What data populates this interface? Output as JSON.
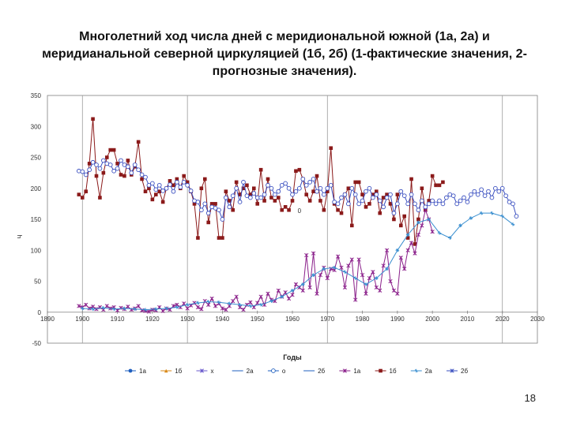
{
  "slide": {
    "title": "Многолетний ход числа дней с меридиональной южной (1а, 2а) и меридианальной северной циркуляцией (1б, 2б) (1-фактические значения, 2-прогнозные значения).",
    "page_number": "18"
  },
  "chart_data": {
    "type": "line",
    "title": "",
    "xlabel": "Годы",
    "ylabel": "Ч",
    "xlim": [
      1890,
      2030
    ],
    "ylim": [
      -50,
      350
    ],
    "x_ticks": [
      "1890",
      "1900",
      "1910",
      "1920",
      "1930",
      "1940",
      "1950",
      "1960",
      "1970",
      "1980",
      "1990",
      "2000",
      "2010",
      "2020",
      "2030"
    ],
    "y_ticks": [
      "350",
      "300",
      "250",
      "200",
      "150",
      "100",
      "50",
      "0",
      "-50"
    ],
    "vertical_grid_years": [
      1900,
      1930,
      1970,
      2020
    ],
    "grid": false,
    "legend_position": "bottom",
    "annotations": [
      {
        "text": "0",
        "x": 1962,
        "y": 160
      }
    ],
    "legend": [
      {
        "label": "1a",
        "color": "#1f5fbf",
        "marker": "circle"
      },
      {
        "label": "1б",
        "color": "#d98a1a",
        "marker": "triangle"
      },
      {
        "label": "x",
        "color": "#6a5acd",
        "marker": "x"
      },
      {
        "label": "2a",
        "color": "#1f5fbf",
        "marker": "none"
      },
      {
        "label": "o",
        "color": "#1f5fbf",
        "marker": "open-circle"
      },
      {
        "label": "2б",
        "color": "#1f5fbf",
        "marker": "none"
      },
      {
        "label": "1a",
        "color": "#8a1f8a",
        "marker": "star"
      },
      {
        "label": "1б",
        "color": "#8b1a1a",
        "marker": "square"
      },
      {
        "label": "2a",
        "color": "#3a8fd0",
        "marker": "plus"
      },
      {
        "label": "2б",
        "color": "#3a4fc0",
        "marker": "x"
      }
    ],
    "series": [
      {
        "name": "1б",
        "color": "#8b1a1a",
        "marker": "square",
        "x": [
          1899,
          1900,
          1901,
          1902,
          1903,
          1904,
          1905,
          1906,
          1907,
          1908,
          1909,
          1910,
          1911,
          1912,
          1913,
          1914,
          1915,
          1916,
          1917,
          1918,
          1919,
          1920,
          1921,
          1922,
          1923,
          1924,
          1925,
          1926,
          1927,
          1928,
          1929,
          1930,
          1931,
          1932,
          1933,
          1934,
          1935,
          1936,
          1937,
          1938,
          1939,
          1940,
          1941,
          1942,
          1943,
          1944,
          1945,
          1946,
          1947,
          1948,
          1949,
          1950,
          1951,
          1952,
          1953,
          1954,
          1955,
          1956,
          1957,
          1958,
          1959,
          1960,
          1961,
          1962,
          1963,
          1964,
          1965,
          1966,
          1967,
          1968,
          1969,
          1970,
          1971,
          1972,
          1973,
          1974,
          1975,
          1976,
          1977,
          1978,
          1979,
          1980,
          1981,
          1982,
          1983,
          1984,
          1985,
          1986,
          1987,
          1988,
          1989,
          1990,
          1991,
          1992,
          1993,
          1994,
          1995,
          1996,
          1997,
          1998,
          1999,
          2000,
          2001,
          2002,
          2003
        ],
        "y": [
          190,
          185,
          195,
          240,
          312,
          220,
          185,
          225,
          250,
          262,
          262,
          240,
          222,
          220,
          245,
          222,
          235,
          275,
          215,
          195,
          200,
          182,
          190,
          195,
          178,
          200,
          212,
          205,
          215,
          200,
          220,
          210,
          195,
          175,
          120,
          200,
          215,
          145,
          175,
          175,
          120,
          120,
          195,
          180,
          165,
          210,
          190,
          200,
          205,
          190,
          200,
          175,
          230,
          180,
          215,
          185,
          180,
          185,
          165,
          170,
          165,
          180,
          228,
          230,
          215,
          190,
          180,
          195,
          220,
          180,
          165,
          195,
          265,
          175,
          165,
          160,
          190,
          200,
          140,
          210,
          210,
          190,
          170,
          175,
          190,
          195,
          160,
          185,
          190,
          175,
          150,
          190,
          140,
          155,
          120,
          215,
          110,
          150,
          200,
          165,
          180,
          220,
          205,
          205,
          210
        ]
      },
      {
        "name": "1a",
        "color": "#8a1f8a",
        "marker": "star",
        "x": [
          1899,
          1900,
          1901,
          1902,
          1903,
          1904,
          1905,
          1906,
          1907,
          1908,
          1909,
          1910,
          1911,
          1912,
          1913,
          1914,
          1915,
          1916,
          1917,
          1918,
          1919,
          1920,
          1921,
          1922,
          1923,
          1924,
          1925,
          1926,
          1927,
          1928,
          1929,
          1930,
          1931,
          1932,
          1933,
          1934,
          1935,
          1936,
          1937,
          1938,
          1939,
          1940,
          1941,
          1942,
          1943,
          1944,
          1945,
          1946,
          1947,
          1948,
          1949,
          1950,
          1951,
          1952,
          1953,
          1954,
          1955,
          1956,
          1957,
          1958,
          1959,
          1960,
          1961,
          1962,
          1963,
          1964,
          1965,
          1966,
          1967,
          1968,
          1969,
          1970,
          1971,
          1972,
          1973,
          1974,
          1975,
          1976,
          1977,
          1978,
          1979,
          1980,
          1981,
          1982,
          1983,
          1984,
          1985,
          1986,
          1987,
          1988,
          1989,
          1990,
          1991,
          1992,
          1993,
          1994,
          1995,
          1996,
          1997,
          1998,
          1999,
          2000
        ],
        "y": [
          10,
          8,
          12,
          6,
          9,
          5,
          8,
          4,
          10,
          6,
          8,
          3,
          7,
          5,
          9,
          4,
          6,
          10,
          3,
          2,
          1,
          4,
          3,
          8,
          2,
          6,
          4,
          10,
          12,
          8,
          14,
          6,
          11,
          15,
          8,
          5,
          18,
          12,
          22,
          10,
          14,
          6,
          4,
          10,
          18,
          25,
          8,
          4,
          12,
          16,
          8,
          15,
          25,
          12,
          30,
          20,
          18,
          35,
          25,
          32,
          22,
          28,
          45,
          40,
          35,
          92,
          40,
          95,
          30,
          60,
          72,
          55,
          70,
          68,
          90,
          72,
          40,
          75,
          85,
          20,
          85,
          60,
          30,
          55,
          65,
          40,
          35,
          75,
          100,
          50,
          35,
          30,
          88,
          70,
          100,
          112,
          95,
          125,
          140,
          165,
          150,
          130
        ]
      },
      {
        "name": "2a",
        "color": "#3a8fd0",
        "marker": "plus",
        "x": [
          1900,
          1903,
          1906,
          1909,
          1912,
          1915,
          1918,
          1921,
          1924,
          1927,
          1930,
          1933,
          1936,
          1939,
          1942,
          1945,
          1948,
          1951,
          1954,
          1957,
          1960,
          1963,
          1966,
          1969,
          1972,
          1975,
          1978,
          1981,
          1984,
          1987,
          1990,
          1993,
          1996,
          1999,
          2002,
          2005,
          2008,
          2011,
          2014,
          2017,
          2020,
          2023
        ],
        "y": [
          6,
          5,
          7,
          5,
          6,
          5,
          4,
          5,
          6,
          8,
          12,
          15,
          17,
          16,
          14,
          12,
          10,
          12,
          18,
          25,
          35,
          45,
          60,
          70,
          72,
          65,
          55,
          45,
          55,
          70,
          100,
          125,
          145,
          150,
          128,
          120,
          140,
          152,
          160,
          160,
          155,
          142
        ]
      },
      {
        "name": "2б",
        "color": "#3a4fc0",
        "marker": "open-circle",
        "x": [
          1899,
          1900,
          1901,
          1902,
          1903,
          1904,
          1905,
          1906,
          1907,
          1908,
          1909,
          1910,
          1911,
          1912,
          1913,
          1914,
          1915,
          1916,
          1917,
          1918,
          1919,
          1920,
          1921,
          1922,
          1923,
          1924,
          1925,
          1926,
          1927,
          1928,
          1929,
          1930,
          1931,
          1932,
          1933,
          1934,
          1935,
          1936,
          1937,
          1938,
          1939,
          1940,
          1941,
          1942,
          1943,
          1944,
          1945,
          1946,
          1947,
          1948,
          1949,
          1950,
          1951,
          1952,
          1953,
          1954,
          1955,
          1956,
          1957,
          1958,
          1959,
          1960,
          1961,
          1962,
          1963,
          1964,
          1965,
          1966,
          1967,
          1968,
          1969,
          1970,
          1971,
          1972,
          1973,
          1974,
          1975,
          1976,
          1977,
          1978,
          1979,
          1980,
          1981,
          1982,
          1983,
          1984,
          1985,
          1986,
          1987,
          1988,
          1989,
          1990,
          1991,
          1992,
          1993,
          1994,
          1995,
          1996,
          1997,
          1998,
          1999,
          2000,
          2001,
          2002,
          2003,
          2004,
          2005,
          2006,
          2007,
          2008,
          2009,
          2010,
          2011,
          2012,
          2013,
          2014,
          2015,
          2016,
          2017,
          2018,
          2019,
          2020,
          2021,
          2022,
          2023,
          2024
        ],
        "y": [
          228,
          227,
          222,
          230,
          242,
          238,
          232,
          245,
          240,
          238,
          228,
          232,
          245,
          238,
          235,
          225,
          238,
          230,
          222,
          218,
          205,
          208,
          198,
          205,
          196,
          200,
          206,
          195,
          210,
          202,
          210,
          205,
          196,
          180,
          178,
          165,
          175,
          160,
          170,
          168,
          165,
          150,
          185,
          170,
          188,
          200,
          178,
          210,
          188,
          185,
          192,
          185,
          185,
          190,
          205,
          200,
          190,
          195,
          205,
          208,
          200,
          190,
          195,
          200,
          215,
          205,
          210,
          215,
          195,
          200,
          190,
          200,
          205,
          178,
          175,
          185,
          190,
          175,
          200,
          190,
          175,
          180,
          195,
          200,
          185,
          190,
          180,
          170,
          185,
          190,
          160,
          175,
          195,
          188,
          175,
          190,
          175,
          165,
          180,
          170,
          175,
          180,
          175,
          180,
          175,
          185,
          190,
          188,
          175,
          180,
          185,
          178,
          190,
          195,
          190,
          198,
          188,
          195,
          185,
          200,
          195,
          200,
          188,
          178,
          175,
          155
        ]
      }
    ]
  }
}
